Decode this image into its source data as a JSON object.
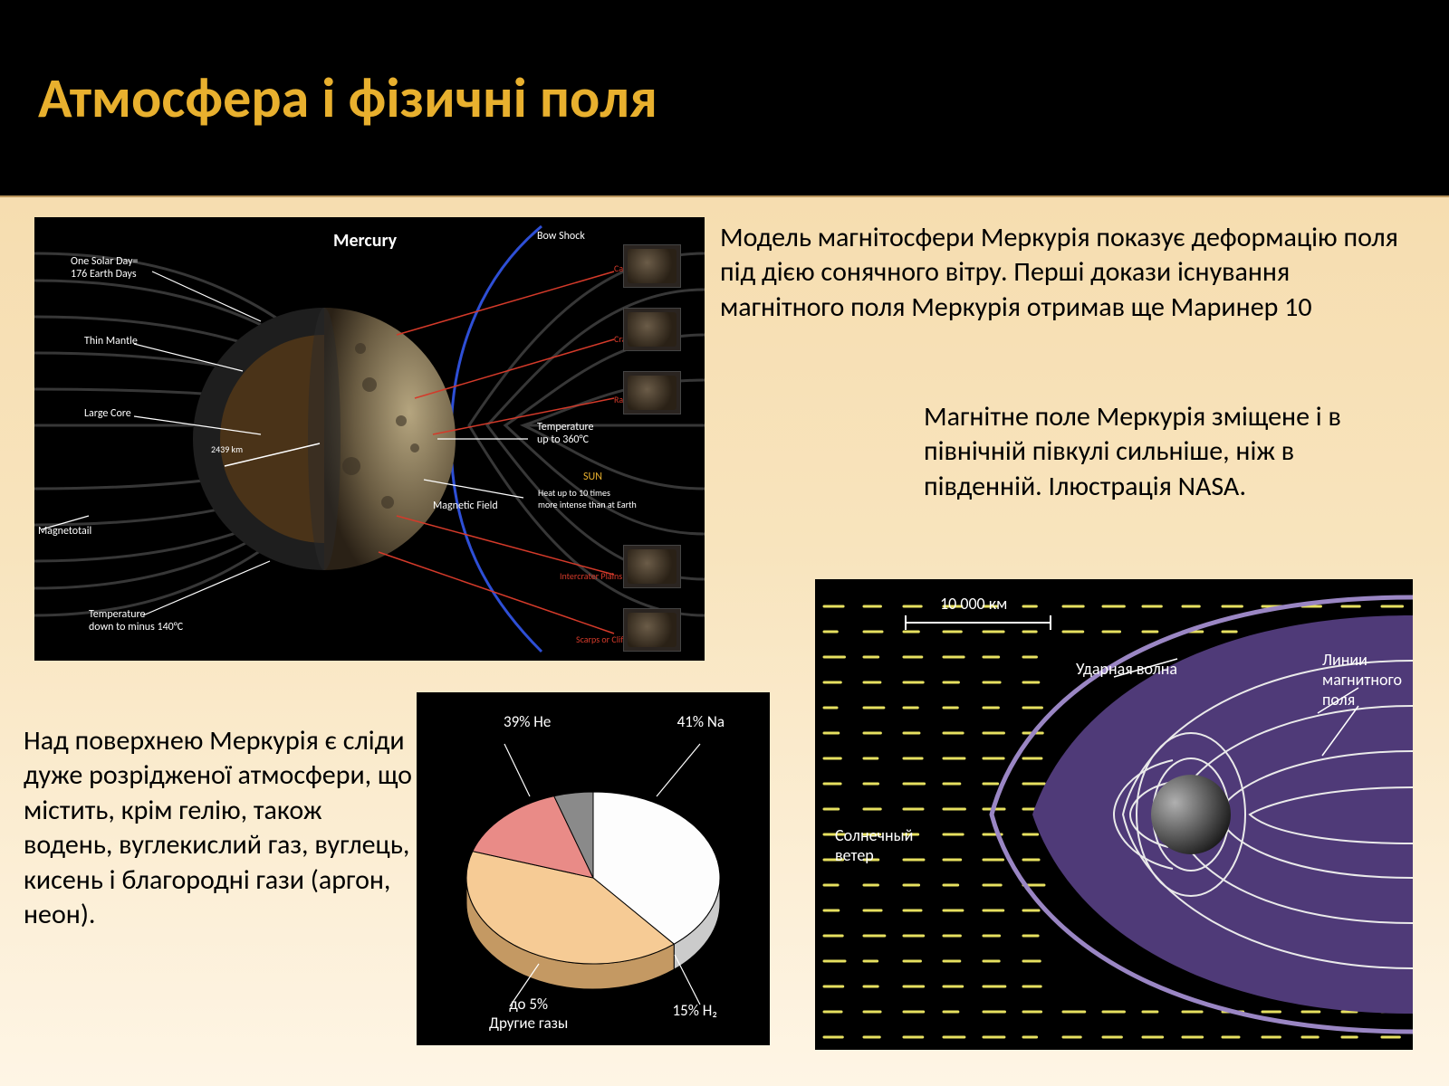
{
  "header": {
    "title": "Атмосфера і фізичні поля"
  },
  "text": {
    "block1": "Модель магнітосфери Меркурія показує деформацію поля під дією сонячного вітру. Перші докази існування магнітного поля Меркурія отримав ще Маринер 10",
    "block2": "Магнітне поле Меркурія зміщене і в північній півкулі сильніше, ніж в південній. Ілюстрація NASA.",
    "block3": "Над поверхнею Меркурія є сліди дуже розрідженої атмосфери, що містить, крім гелію, також водень, вуглекислий газ, вуглець, кисень і благородні гази (аргон, неон)."
  },
  "mag_diagram": {
    "title": "Mercury",
    "labels": {
      "bow_shock": "Bow Shock",
      "solar_day": "One Solar Day=\n176 Earth Days",
      "thin_mantle": "Thin Mantle",
      "large_core": "Large Core",
      "radius": "2439 km",
      "temp_hot": "Temperature\nup to 360°C",
      "sun": "SUN",
      "heat": "Heat up to 10 times\nmore intense than at Earth",
      "magnetic_field": "Magnetic Field",
      "magnetotail": "Magnetotail",
      "temp_cold": "Temperature\ndown to minus 140°C",
      "caloris": "Caloris Basin",
      "craters": "Craters",
      "ray_crater": "Ray Crater",
      "intercrater": "Intercrater Plains",
      "scarps": "Scarps or Cliffs"
    },
    "colors": {
      "bg": "#000000",
      "field_line": "#4a4a4a",
      "bow_shock": "#2e4fd6",
      "core": "#5a3a1e",
      "mantle": "#2a2a2a",
      "surface_light": "#9a8a72",
      "surface_dark": "#4a4030",
      "callout": "#d43a2a"
    }
  },
  "pie_chart": {
    "type": "pie",
    "slices": [
      {
        "label": "39% He",
        "value": 39,
        "color": "#fdfdfd"
      },
      {
        "label": "41% Na",
        "value": 41,
        "color": "#f6cb95"
      },
      {
        "label": "15% H₂",
        "value": 15,
        "color": "#e98b87"
      },
      {
        "label": "до 5%\nДругие газы",
        "value": 5,
        "color": "#8a8a8a"
      }
    ],
    "bg": "#000000",
    "stroke": "#000000",
    "depth_shade": "#555555"
  },
  "purple_diagram": {
    "labels": {
      "scale": "10 000 км",
      "shock": "Ударная волна",
      "lines": "Линии\nмагнитного\nполя",
      "wind": "Солнечный\nветер"
    },
    "colors": {
      "bg": "#000000",
      "region": "#4f3a78",
      "shock": "#7d6aa8",
      "line": "#e8e8e8",
      "planet_light": "#8a8a8a",
      "planet_dark": "#1a1a1a",
      "wind_dash": "#e6e060"
    }
  }
}
